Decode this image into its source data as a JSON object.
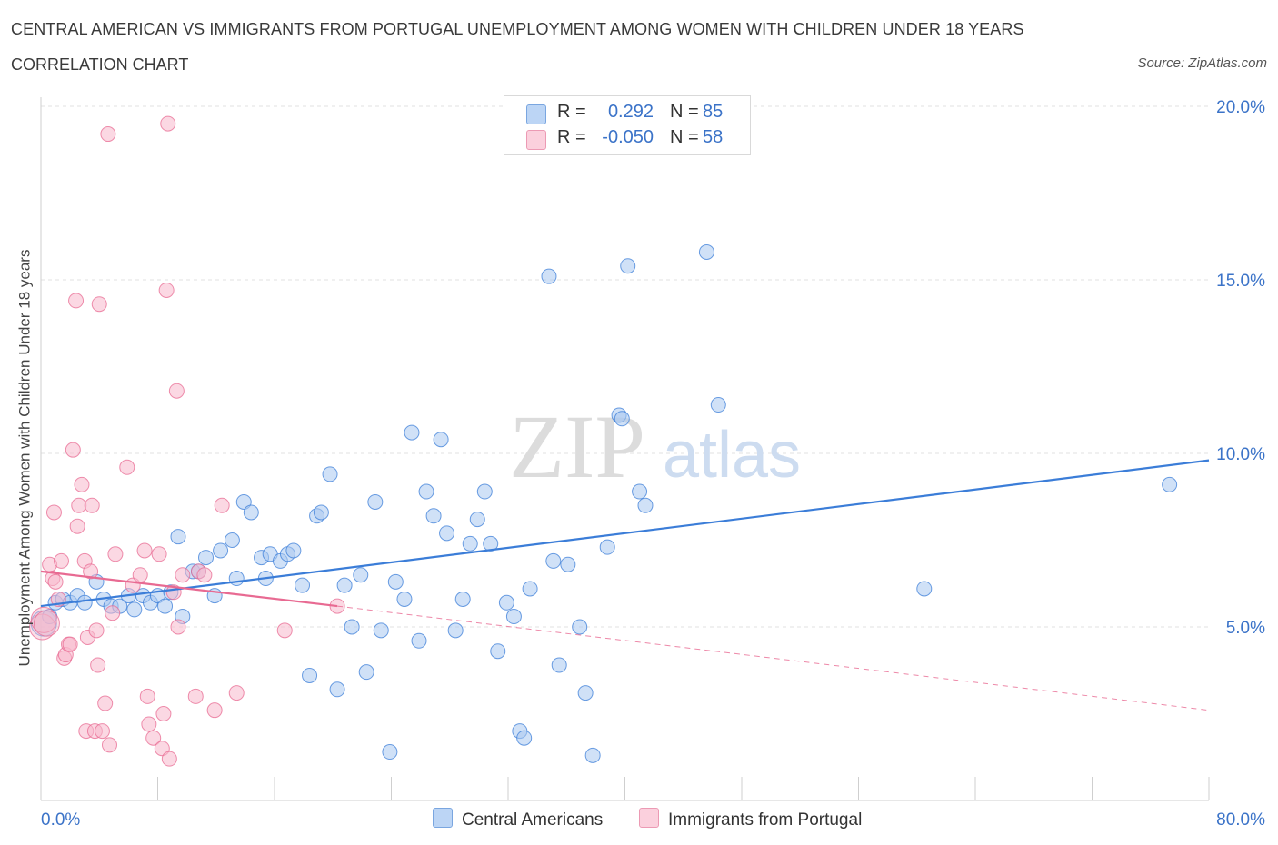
{
  "header": {
    "title": "CENTRAL AMERICAN VS IMMIGRANTS FROM PORTUGAL UNEMPLOYMENT AMONG WOMEN WITH CHILDREN UNDER 18 YEARS",
    "subtitle": "CORRELATION CHART",
    "source": "Source: ZipAtlas.com"
  },
  "watermark": {
    "zip": "ZIP",
    "atlas": "atlas"
  },
  "legend": {
    "rows": [
      {
        "r_label": "R =",
        "r_value": "0.292",
        "n_label": "N =",
        "n_value": "85",
        "color": "#a9c8f0"
      },
      {
        "r_label": "R =",
        "r_value": "-0.050",
        "n_label": "N =",
        "n_value": "58",
        "color": "#f7b8cc"
      }
    ]
  },
  "bottom_legend": [
    {
      "label": "Central Americans",
      "color": "#a9c8f0"
    },
    {
      "label": "Immigrants from Portugal",
      "color": "#f7b8cc"
    }
  ],
  "chart_data": {
    "type": "scatter",
    "xlabel": "",
    "ylabel": "Unemployment Among Women with Children Under 18 years",
    "xlim": [
      0,
      80
    ],
    "ylim": [
      0,
      20
    ],
    "x_tick_labels": [
      {
        "value": 0,
        "label": "0.0%"
      },
      {
        "value": 80,
        "label": "80.0%"
      }
    ],
    "y_tick_labels": [
      {
        "value": 5,
        "label": "5.0%"
      },
      {
        "value": 10,
        "label": "10.0%"
      },
      {
        "value": 15,
        "label": "15.0%"
      },
      {
        "value": 20,
        "label": "20.0%"
      }
    ],
    "grid": true,
    "legend_position": "top-center",
    "series": [
      {
        "name": "Central Americans",
        "color": "#3b7dd8",
        "fill": "#a9c8f0",
        "trend": {
          "x": [
            0,
            80
          ],
          "y": [
            5.6,
            9.8
          ],
          "dashed": false
        },
        "points": [
          [
            0.2,
            5.1
          ],
          [
            0.6,
            5.3
          ],
          [
            1.0,
            5.7
          ],
          [
            1.5,
            5.8
          ],
          [
            2.0,
            5.7
          ],
          [
            2.5,
            5.9
          ],
          [
            3.0,
            5.7
          ],
          [
            3.8,
            6.3
          ],
          [
            4.3,
            5.8
          ],
          [
            4.8,
            5.6
          ],
          [
            5.4,
            5.6
          ],
          [
            6.0,
            5.9
          ],
          [
            6.4,
            5.5
          ],
          [
            7.0,
            5.9
          ],
          [
            7.5,
            5.7
          ],
          [
            8.0,
            5.9
          ],
          [
            8.5,
            5.6
          ],
          [
            8.9,
            6.0
          ],
          [
            9.4,
            7.6
          ],
          [
            9.7,
            5.3
          ],
          [
            10.4,
            6.6
          ],
          [
            10.8,
            6.6
          ],
          [
            11.3,
            7.0
          ],
          [
            11.9,
            5.9
          ],
          [
            12.3,
            7.2
          ],
          [
            13.1,
            7.5
          ],
          [
            13.4,
            6.4
          ],
          [
            13.9,
            8.6
          ],
          [
            14.4,
            8.3
          ],
          [
            15.1,
            7.0
          ],
          [
            15.4,
            6.4
          ],
          [
            15.7,
            7.1
          ],
          [
            16.4,
            6.9
          ],
          [
            16.9,
            7.1
          ],
          [
            17.3,
            7.2
          ],
          [
            17.9,
            6.2
          ],
          [
            18.4,
            3.6
          ],
          [
            18.9,
            8.2
          ],
          [
            19.2,
            8.3
          ],
          [
            19.8,
            9.4
          ],
          [
            20.3,
            3.2
          ],
          [
            20.8,
            6.2
          ],
          [
            21.3,
            5.0
          ],
          [
            21.9,
            6.5
          ],
          [
            22.3,
            3.7
          ],
          [
            22.9,
            8.6
          ],
          [
            23.3,
            4.9
          ],
          [
            23.9,
            1.4
          ],
          [
            24.3,
            6.3
          ],
          [
            24.9,
            5.8
          ],
          [
            25.4,
            10.6
          ],
          [
            25.9,
            4.6
          ],
          [
            26.4,
            8.9
          ],
          [
            26.9,
            8.2
          ],
          [
            27.4,
            10.4
          ],
          [
            27.8,
            7.7
          ],
          [
            28.4,
            4.9
          ],
          [
            28.9,
            5.8
          ],
          [
            29.4,
            7.4
          ],
          [
            29.9,
            8.1
          ],
          [
            30.4,
            8.9
          ],
          [
            30.8,
            7.4
          ],
          [
            31.3,
            4.3
          ],
          [
            31.9,
            5.7
          ],
          [
            32.4,
            5.3
          ],
          [
            32.8,
            2.0
          ],
          [
            33.1,
            1.8
          ],
          [
            33.5,
            6.1
          ],
          [
            34.8,
            15.1
          ],
          [
            35.1,
            6.9
          ],
          [
            35.5,
            3.9
          ],
          [
            36.1,
            6.8
          ],
          [
            36.9,
            5.0
          ],
          [
            37.3,
            3.1
          ],
          [
            37.8,
            1.3
          ],
          [
            38.8,
            7.3
          ],
          [
            39.6,
            11.1
          ],
          [
            39.8,
            11.0
          ],
          [
            40.2,
            15.4
          ],
          [
            41.0,
            8.9
          ],
          [
            41.4,
            8.5
          ],
          [
            45.6,
            15.8
          ],
          [
            46.4,
            11.4
          ],
          [
            60.5,
            6.1
          ],
          [
            77.3,
            9.1
          ]
        ]
      },
      {
        "name": "Immigrants from Portugal",
        "color": "#e86a92",
        "fill": "#f7b8cc",
        "trend": {
          "x": [
            0,
            20.3
          ],
          "y": [
            6.6,
            5.6
          ],
          "dashed": false
        },
        "trend_extension": {
          "x": [
            20.3,
            80
          ],
          "y": [
            5.6,
            2.6
          ],
          "dashed": true
        },
        "points": [
          [
            0.1,
            5.0
          ],
          [
            0.2,
            5.2
          ],
          [
            0.4,
            5.1
          ],
          [
            0.6,
            6.8
          ],
          [
            0.8,
            6.4
          ],
          [
            0.9,
            8.3
          ],
          [
            1.0,
            6.3
          ],
          [
            1.2,
            5.8
          ],
          [
            1.4,
            6.9
          ],
          [
            1.6,
            4.1
          ],
          [
            1.7,
            4.2
          ],
          [
            1.9,
            4.5
          ],
          [
            2.0,
            4.5
          ],
          [
            2.2,
            10.1
          ],
          [
            2.4,
            14.4
          ],
          [
            2.5,
            7.9
          ],
          [
            2.6,
            8.5
          ],
          [
            2.8,
            9.1
          ],
          [
            3.0,
            6.9
          ],
          [
            3.1,
            2.0
          ],
          [
            3.2,
            4.7
          ],
          [
            3.4,
            6.6
          ],
          [
            3.5,
            8.5
          ],
          [
            3.7,
            2.0
          ],
          [
            3.8,
            4.9
          ],
          [
            3.9,
            3.9
          ],
          [
            4.0,
            14.3
          ],
          [
            4.2,
            2.0
          ],
          [
            4.4,
            2.8
          ],
          [
            4.6,
            19.2
          ],
          [
            4.7,
            1.6
          ],
          [
            4.9,
            5.4
          ],
          [
            5.1,
            7.1
          ],
          [
            5.9,
            9.6
          ],
          [
            6.3,
            6.2
          ],
          [
            6.8,
            6.5
          ],
          [
            7.1,
            7.2
          ],
          [
            7.3,
            3.0
          ],
          [
            7.4,
            2.2
          ],
          [
            7.7,
            1.8
          ],
          [
            8.1,
            7.1
          ],
          [
            8.3,
            1.5
          ],
          [
            8.4,
            2.5
          ],
          [
            8.6,
            14.7
          ],
          [
            8.7,
            19.5
          ],
          [
            8.8,
            1.2
          ],
          [
            9.1,
            6.0
          ],
          [
            9.3,
            11.8
          ],
          [
            9.4,
            5.0
          ],
          [
            9.7,
            6.5
          ],
          [
            10.6,
            3.0
          ],
          [
            10.8,
            6.6
          ],
          [
            11.2,
            6.5
          ],
          [
            11.9,
            2.6
          ],
          [
            12.4,
            8.5
          ],
          [
            13.4,
            3.1
          ],
          [
            16.7,
            4.9
          ],
          [
            20.3,
            5.6
          ]
        ]
      }
    ]
  }
}
